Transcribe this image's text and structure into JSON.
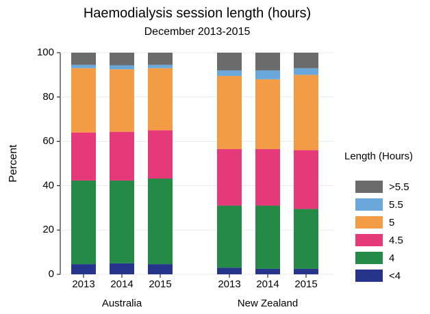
{
  "chart_data": {
    "type": "stacked-bar",
    "title": "Haemodialysis session length (hours)",
    "subtitle": "December 2013-2015",
    "y_label": "Percent",
    "legend_title": "Length (Hours)",
    "groups": [
      {
        "name": "Australia",
        "categories": [
          "2013",
          "2014",
          "2015"
        ]
      },
      {
        "name": "New Zealand",
        "categories": [
          "2013",
          "2014",
          "2015"
        ]
      }
    ],
    "series": [
      {
        "name": "<4",
        "color": "#27348b",
        "values": [
          4.6,
          5,
          4.6,
          3,
          2.5,
          2.5
        ]
      },
      {
        "name": "4",
        "color": "#238b45",
        "values": [
          37.7,
          37.3,
          38.6,
          28,
          28.5,
          27
        ]
      },
      {
        "name": "4.5",
        "color": "#e6397a",
        "values": [
          21.7,
          22,
          21.8,
          25.5,
          25.5,
          26.5
        ]
      },
      {
        "name": "5",
        "color": "#f39b45",
        "values": [
          29,
          28.2,
          28,
          33,
          31.5,
          34
        ]
      },
      {
        "name": "5.5",
        "color": "#6aa7da",
        "values": [
          1.5,
          1.8,
          1.5,
          2.5,
          4,
          3
        ]
      },
      {
        "name": ">5.5",
        "color": "#6b6b6b",
        "values": [
          5.5,
          5.7,
          5.5,
          8,
          8,
          7
        ]
      }
    ],
    "ylim": [
      0,
      100
    ],
    "yticks": [
      0,
      20,
      40,
      60,
      80,
      100
    ],
    "grid": true
  }
}
